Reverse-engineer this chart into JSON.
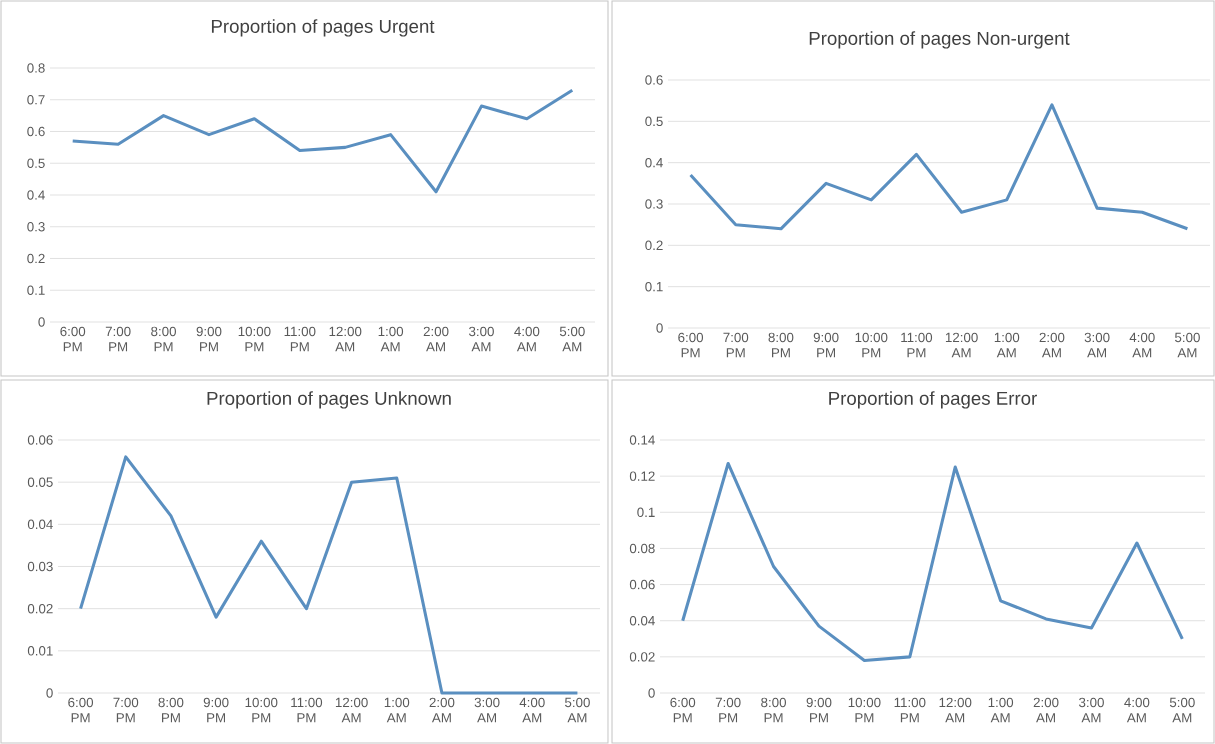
{
  "chart_data": [
    {
      "type": "line",
      "title": "Proportion of pages Urgent",
      "categories": [
        "6:00 PM",
        "7:00 PM",
        "8:00 PM",
        "9:00 PM",
        "10:00 PM",
        "11:00 PM",
        "12:00 AM",
        "1:00 AM",
        "2:00 AM",
        "3:00 AM",
        "4:00 AM",
        "5:00 AM"
      ],
      "values": [
        0.57,
        0.56,
        0.65,
        0.59,
        0.64,
        0.54,
        0.55,
        0.59,
        0.41,
        0.68,
        0.64,
        0.73
      ],
      "color": "#5a8fc0",
      "ylim": [
        0,
        0.8
      ],
      "yticks": [
        0,
        0.1,
        0.2,
        0.3,
        0.4,
        0.5,
        0.6,
        0.7,
        0.8
      ],
      "grid": "y"
    },
    {
      "type": "line",
      "title": "Proportion of pages Non-urgent",
      "categories": [
        "6:00 PM",
        "7:00 PM",
        "8:00 PM",
        "9:00 PM",
        "10:00 PM",
        "11:00 PM",
        "12:00 AM",
        "1:00 AM",
        "2:00 AM",
        "3:00 AM",
        "4:00 AM",
        "5:00 AM"
      ],
      "values": [
        0.37,
        0.25,
        0.24,
        0.35,
        0.31,
        0.42,
        0.28,
        0.31,
        0.54,
        0.29,
        0.28,
        0.24
      ],
      "color": "#5a8fc0",
      "ylim": [
        0,
        0.6
      ],
      "yticks": [
        0,
        0.1,
        0.2,
        0.3,
        0.4,
        0.5,
        0.6
      ],
      "grid": "y"
    },
    {
      "type": "line",
      "title": "Proportion of pages Unknown",
      "categories": [
        "6:00 PM",
        "7:00 PM",
        "8:00 PM",
        "9:00 PM",
        "10:00 PM",
        "11:00 PM",
        "12:00 AM",
        "1:00 AM",
        "2:00 AM",
        "3:00 AM",
        "4:00 AM",
        "5:00 AM"
      ],
      "values": [
        0.02,
        0.056,
        0.042,
        0.018,
        0.036,
        0.02,
        0.05,
        0.051,
        0,
        0,
        0,
        0
      ],
      "color": "#5a8fc0",
      "ylim": [
        0,
        0.06
      ],
      "yticks": [
        0,
        0.01,
        0.02,
        0.03,
        0.04,
        0.05,
        0.06
      ],
      "grid": "y"
    },
    {
      "type": "line",
      "title": "Proportion of pages Error",
      "categories": [
        "6:00 PM",
        "7:00 PM",
        "8:00 PM",
        "9:00 PM",
        "10:00 PM",
        "11:00 PM",
        "12:00 AM",
        "1:00 AM",
        "2:00 AM",
        "3:00 AM",
        "4:00 AM",
        "5:00 AM"
      ],
      "values": [
        0.04,
        0.127,
        0.07,
        0.037,
        0.018,
        0.02,
        0.125,
        0.051,
        0.041,
        0.036,
        0.083,
        0.03
      ],
      "color": "#5a8fc0",
      "ylim": [
        0,
        0.14
      ],
      "yticks": [
        0,
        0.02,
        0.04,
        0.06,
        0.08,
        0.1,
        0.12,
        0.14
      ],
      "grid": "y"
    }
  ]
}
